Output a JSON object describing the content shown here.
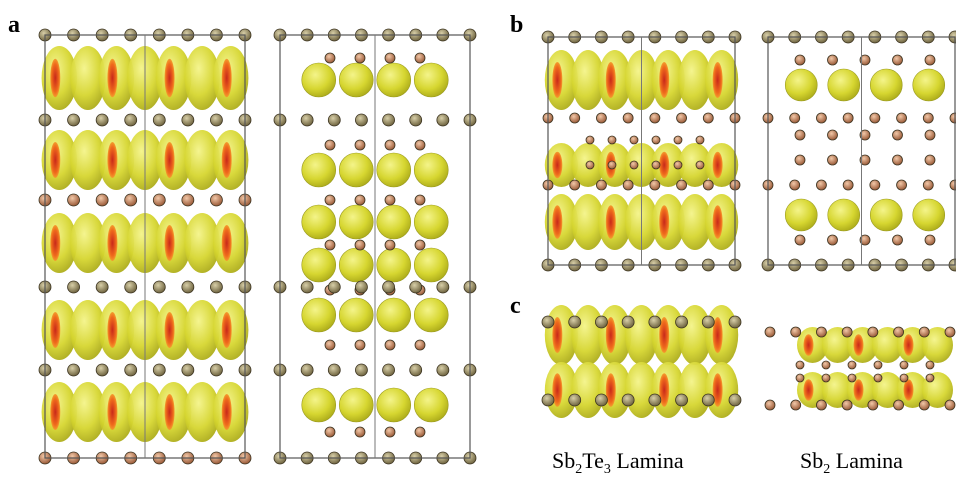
{
  "panels": {
    "a": {
      "label": "a"
    },
    "b": {
      "label": "b"
    },
    "c": {
      "label": "c"
    }
  },
  "captions": [
    {
      "parts": [
        "Sb",
        "2",
        "Te",
        "3",
        "Lamina"
      ]
    },
    {
      "parts": [
        "Sb",
        "2",
        "Lamina"
      ]
    }
  ]
}
